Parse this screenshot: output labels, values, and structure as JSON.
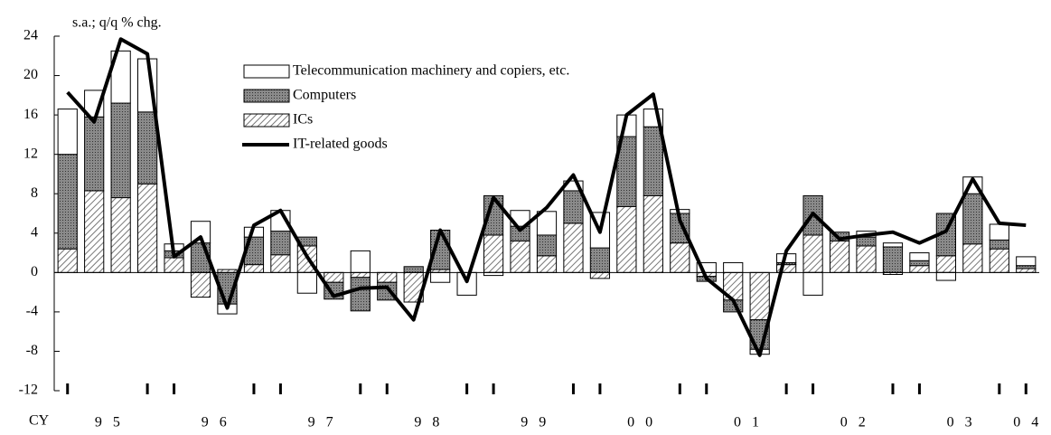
{
  "chart_data": {
    "type": "bar",
    "subtitle": "s.a.; q/q % chg.",
    "x_prefix": "CY",
    "year_labels": [
      "95",
      "96",
      "97",
      "98",
      "99",
      "00",
      "01",
      "02",
      "03",
      "04"
    ],
    "categories": [
      null,
      null,
      null,
      null,
      null,
      null,
      null,
      null,
      null,
      null,
      null,
      null,
      null,
      null,
      null,
      null,
      null,
      null,
      null,
      null,
      null,
      null,
      null,
      null,
      null,
      null,
      null,
      null,
      null,
      null,
      null,
      null,
      null,
      null,
      null,
      null,
      null
    ],
    "series": [
      {
        "name": "ICs",
        "color": "#999999",
        "pattern": "hatch",
        "values": [
          2.4,
          8.3,
          7.6,
          9.0,
          1.5,
          -2.5,
          0.3,
          0.8,
          1.8,
          2.7,
          -1.0,
          -0.5,
          -1.0,
          -3.0,
          0.3,
          0,
          3.8,
          3.2,
          1.7,
          5.0,
          -0.6,
          6.7,
          7.8,
          3.0,
          -0.4,
          -2.8,
          -4.8,
          0.8,
          3.8,
          3.2,
          2.7,
          -0.2,
          0.7,
          1.7,
          2.9,
          2.4,
          0.4
        ]
      },
      {
        "name": "Computers",
        "color": "#777777",
        "pattern": "dots",
        "values": [
          9.6,
          7.5,
          9.6,
          7.3,
          0.7,
          3.0,
          -3.2,
          2.8,
          2.4,
          0.9,
          -1.7,
          -3.4,
          -1.8,
          0.6,
          4.0,
          0,
          4.0,
          1.5,
          2.1,
          3.3,
          2.5,
          7.1,
          7.0,
          3.0,
          -0.5,
          -1.2,
          -3.0,
          0.2,
          4.0,
          0.9,
          0.9,
          2.6,
          0.5,
          4.3,
          5.1,
          0.9,
          0.3
        ]
      },
      {
        "name": "Telecommunication machinery and copiers, etc.",
        "color": "#ffffff",
        "pattern": "none",
        "values": [
          4.6,
          2.7,
          5.3,
          5.4,
          0.7,
          2.2,
          -1.0,
          1.0,
          2.1,
          -2.1,
          0,
          2.2,
          0,
          0,
          -1.0,
          -2.3,
          -0.3,
          1.6,
          2.4,
          1.0,
          3.6,
          2.2,
          1.8,
          0.4,
          1.0,
          1.0,
          -0.5,
          0.9,
          -2.3,
          0,
          0.6,
          0.4,
          0.8,
          -0.8,
          1.7,
          1.6,
          0.9
        ]
      },
      {
        "name": "IT-related goods",
        "color": "#000000",
        "type": "line",
        "values": [
          18.3,
          15.3,
          23.7,
          22.2,
          1.6,
          3.6,
          -3.6,
          4.8,
          6.3,
          1.6,
          -2.4,
          -1.6,
          -1.5,
          -4.8,
          4.3,
          -0.9,
          7.6,
          4.3,
          6.6,
          9.9,
          4.1,
          16.0,
          18.1,
          5.3,
          -0.6,
          -2.8,
          -8.4,
          2.2,
          6.0,
          3.4,
          3.8,
          4.1,
          3.0,
          4.2,
          9.5,
          5.0,
          4.8
        ]
      }
    ],
    "ylim": [
      -12,
      24
    ],
    "yticks": [
      -12,
      -8,
      -4,
      0,
      4,
      8,
      12,
      16,
      20,
      24
    ]
  }
}
